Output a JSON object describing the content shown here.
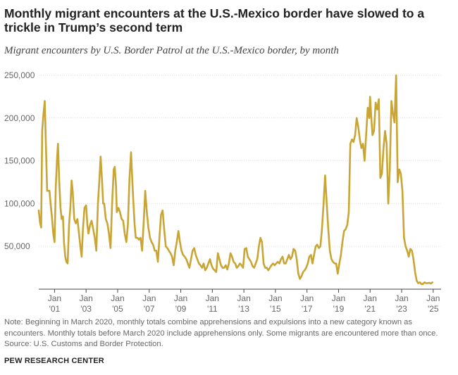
{
  "title": "Monthly migrant encounters at the U.S.-Mexico border have slowed to a trickle in Trump’s second term",
  "subtitle": "Migrant encounters by U.S. Border Patrol at the U.S.-Mexico border, by month",
  "note": {
    "line1": "Note: Beginning in March 2020, monthly totals combine apprehensions and expulsions into a new category known as",
    "line2": "encounters. Monthly totals before March 2020 include apprehensions only. Some migrants are encountered more than once.",
    "source": "Source: U.S. Customs and Border Protection."
  },
  "brand": "PEW RESEARCH CENTER",
  "colors": {
    "line": "#c9a534",
    "grid": "#dddddd",
    "axis_text": "#666666"
  },
  "chart_data": {
    "type": "line",
    "title": "Monthly migrant encounters at the U.S.-Mexico border have slowed to a trickle in Trump’s second term",
    "subtitle": "Migrant encounters by U.S. Border Patrol at the U.S.-Mexico border, by month",
    "xlabel": "",
    "ylabel": "",
    "ylim": [
      0,
      250000
    ],
    "xlim": [
      2000.0,
      2025.5
    ],
    "y_ticks": [
      50000,
      100000,
      150000,
      200000,
      250000
    ],
    "y_tick_labels": [
      "50,000",
      "100,000",
      "150,000",
      "200,000",
      "250,000"
    ],
    "x_ticks": [
      {
        "value": 2001,
        "month": "Jan",
        "year": "'01"
      },
      {
        "value": 2003,
        "month": "Jan",
        "year": "'03"
      },
      {
        "value": 2005,
        "month": "Jan",
        "year": "'05"
      },
      {
        "value": 2007,
        "month": "Jan",
        "year": "'07"
      },
      {
        "value": 2009,
        "month": "Jan",
        "year": "'09"
      },
      {
        "value": 2011,
        "month": "Jan",
        "year": "'11"
      },
      {
        "value": 2013,
        "month": "Jan",
        "year": "'13"
      },
      {
        "value": 2015,
        "month": "Jan",
        "year": "'15"
      },
      {
        "value": 2017,
        "month": "Jan",
        "year": "'17"
      },
      {
        "value": 2019,
        "month": "Jan",
        "year": "'19"
      },
      {
        "value": 2021,
        "month": "Jan",
        "year": "'21"
      },
      {
        "value": 2023,
        "month": "Jan",
        "year": "'23"
      },
      {
        "value": 2025,
        "month": "Jan",
        "year": "'25"
      }
    ],
    "grid": true,
    "series": [
      {
        "values": [
          [
            2000.0,
            92000
          ],
          [
            2000.08,
            78000
          ],
          [
            2000.15,
            72000
          ],
          [
            2000.22,
            185000
          ],
          [
            2000.3,
            205000
          ],
          [
            2000.38,
            220000
          ],
          [
            2000.45,
            170000
          ],
          [
            2000.53,
            115000
          ],
          [
            2000.6,
            115000
          ],
          [
            2000.68,
            115000
          ],
          [
            2000.75,
            100000
          ],
          [
            2000.83,
            85000
          ],
          [
            2000.92,
            65000
          ],
          [
            2001.0,
            55000
          ],
          [
            2001.08,
            120000
          ],
          [
            2001.15,
            150000
          ],
          [
            2001.22,
            170000
          ],
          [
            2001.3,
            125000
          ],
          [
            2001.38,
            95000
          ],
          [
            2001.45,
            82000
          ],
          [
            2001.53,
            85000
          ],
          [
            2001.6,
            55000
          ],
          [
            2001.68,
            38000
          ],
          [
            2001.75,
            32000
          ],
          [
            2001.83,
            30000
          ],
          [
            2001.92,
            75000
          ],
          [
            2002.0,
            95000
          ],
          [
            2002.08,
            127000
          ],
          [
            2002.15,
            115000
          ],
          [
            2002.25,
            82000
          ],
          [
            2002.35,
            77000
          ],
          [
            2002.45,
            82000
          ],
          [
            2002.55,
            65000
          ],
          [
            2002.65,
            48000
          ],
          [
            2002.72,
            38000
          ],
          [
            2002.8,
            70000
          ],
          [
            2002.9,
            95000
          ],
          [
            2003.0,
            98000
          ],
          [
            2003.08,
            75000
          ],
          [
            2003.15,
            65000
          ],
          [
            2003.25,
            75000
          ],
          [
            2003.35,
            80000
          ],
          [
            2003.45,
            70000
          ],
          [
            2003.55,
            60000
          ],
          [
            2003.65,
            45000
          ],
          [
            2003.75,
            100000
          ],
          [
            2003.85,
            130000
          ],
          [
            2003.92,
            155000
          ],
          [
            2004.0,
            130000
          ],
          [
            2004.08,
            100000
          ],
          [
            2004.15,
            100000
          ],
          [
            2004.25,
            82000
          ],
          [
            2004.35,
            77000
          ],
          [
            2004.45,
            65000
          ],
          [
            2004.55,
            48000
          ],
          [
            2004.65,
            100000
          ],
          [
            2004.75,
            140000
          ],
          [
            2004.82,
            143000
          ],
          [
            2004.9,
            120000
          ],
          [
            2004.95,
            90000
          ],
          [
            2005.05,
            95000
          ],
          [
            2005.15,
            90000
          ],
          [
            2005.25,
            82000
          ],
          [
            2005.35,
            80000
          ],
          [
            2005.45,
            65000
          ],
          [
            2005.55,
            55000
          ],
          [
            2005.65,
            75000
          ],
          [
            2005.75,
            130000
          ],
          [
            2005.85,
            160000
          ],
          [
            2005.92,
            130000
          ],
          [
            2006.0,
            100000
          ],
          [
            2006.08,
            75000
          ],
          [
            2006.15,
            60000
          ],
          [
            2006.25,
            60000
          ],
          [
            2006.35,
            58000
          ],
          [
            2006.45,
            60000
          ],
          [
            2006.55,
            45000
          ],
          [
            2006.65,
            78000
          ],
          [
            2006.75,
            115000
          ],
          [
            2006.85,
            90000
          ],
          [
            2006.95,
            72000
          ],
          [
            2007.05,
            60000
          ],
          [
            2007.15,
            55000
          ],
          [
            2007.25,
            52000
          ],
          [
            2007.35,
            45000
          ],
          [
            2007.45,
            45000
          ],
          [
            2007.55,
            32000
          ],
          [
            2007.65,
            60000
          ],
          [
            2007.75,
            87000
          ],
          [
            2007.85,
            92000
          ],
          [
            2007.95,
            70000
          ],
          [
            2008.05,
            50000
          ],
          [
            2008.15,
            48000
          ],
          [
            2008.25,
            45000
          ],
          [
            2008.35,
            42000
          ],
          [
            2008.45,
            38000
          ],
          [
            2008.55,
            28000
          ],
          [
            2008.65,
            45000
          ],
          [
            2008.75,
            55000
          ],
          [
            2008.85,
            68000
          ],
          [
            2008.95,
            55000
          ],
          [
            2009.05,
            45000
          ],
          [
            2009.15,
            40000
          ],
          [
            2009.25,
            38000
          ],
          [
            2009.35,
            35000
          ],
          [
            2009.45,
            30000
          ],
          [
            2009.55,
            25000
          ],
          [
            2009.65,
            35000
          ],
          [
            2009.75,
            45000
          ],
          [
            2009.85,
            48000
          ],
          [
            2009.95,
            40000
          ],
          [
            2010.05,
            35000
          ],
          [
            2010.15,
            30000
          ],
          [
            2010.25,
            28000
          ],
          [
            2010.35,
            25000
          ],
          [
            2010.45,
            30000
          ],
          [
            2010.55,
            22000
          ],
          [
            2010.65,
            25000
          ],
          [
            2010.75,
            30000
          ],
          [
            2010.85,
            35000
          ],
          [
            2010.95,
            28000
          ],
          [
            2011.05,
            24000
          ],
          [
            2011.15,
            22000
          ],
          [
            2011.25,
            20000
          ],
          [
            2011.35,
            42000
          ],
          [
            2011.45,
            35000
          ],
          [
            2011.55,
            28000
          ],
          [
            2011.65,
            25000
          ],
          [
            2011.75,
            25000
          ],
          [
            2011.85,
            28000
          ],
          [
            2011.95,
            23000
          ],
          [
            2012.05,
            30000
          ],
          [
            2012.15,
            42000
          ],
          [
            2012.25,
            38000
          ],
          [
            2012.35,
            32000
          ],
          [
            2012.45,
            30000
          ],
          [
            2012.55,
            25000
          ],
          [
            2012.65,
            27000
          ],
          [
            2012.75,
            30000
          ],
          [
            2012.85,
            28000
          ],
          [
            2012.95,
            25000
          ],
          [
            2013.05,
            47000
          ],
          [
            2013.15,
            48000
          ],
          [
            2013.25,
            38000
          ],
          [
            2013.35,
            35000
          ],
          [
            2013.45,
            32000
          ],
          [
            2013.55,
            27000
          ],
          [
            2013.65,
            25000
          ],
          [
            2013.75,
            30000
          ],
          [
            2013.85,
            35000
          ],
          [
            2013.95,
            50000
          ],
          [
            2014.05,
            60000
          ],
          [
            2014.15,
            55000
          ],
          [
            2014.25,
            30000
          ],
          [
            2014.35,
            25000
          ],
          [
            2014.45,
            25000
          ],
          [
            2014.55,
            22000
          ],
          [
            2014.65,
            25000
          ],
          [
            2014.75,
            28000
          ],
          [
            2014.85,
            30000
          ],
          [
            2014.95,
            28000
          ],
          [
            2015.05,
            30000
          ],
          [
            2015.15,
            32000
          ],
          [
            2015.25,
            30000
          ],
          [
            2015.35,
            35000
          ],
          [
            2015.45,
            38000
          ],
          [
            2015.55,
            30000
          ],
          [
            2015.65,
            30000
          ],
          [
            2015.75,
            35000
          ],
          [
            2015.85,
            40000
          ],
          [
            2015.95,
            35000
          ],
          [
            2016.05,
            38000
          ],
          [
            2016.15,
            47000
          ],
          [
            2016.25,
            45000
          ],
          [
            2016.35,
            35000
          ],
          [
            2016.45,
            18000
          ],
          [
            2016.55,
            12000
          ],
          [
            2016.65,
            15000
          ],
          [
            2016.75,
            20000
          ],
          [
            2016.85,
            22000
          ],
          [
            2016.95,
            25000
          ],
          [
            2017.05,
            30000
          ],
          [
            2017.15,
            38000
          ],
          [
            2017.25,
            40000
          ],
          [
            2017.35,
            30000
          ],
          [
            2017.45,
            40000
          ],
          [
            2017.55,
            50000
          ],
          [
            2017.65,
            52000
          ],
          [
            2017.75,
            48000
          ],
          [
            2017.85,
            50000
          ],
          [
            2017.95,
            70000
          ],
          [
            2018.05,
            100000
          ],
          [
            2018.15,
            133000
          ],
          [
            2018.25,
            100000
          ],
          [
            2018.35,
            70000
          ],
          [
            2018.45,
            45000
          ],
          [
            2018.55,
            35000
          ],
          [
            2018.65,
            32000
          ],
          [
            2018.75,
            30000
          ],
          [
            2018.85,
            30000
          ],
          [
            2018.95,
            18000
          ],
          [
            2019.05,
            30000
          ],
          [
            2019.15,
            40000
          ],
          [
            2019.25,
            55000
          ],
          [
            2019.35,
            68000
          ],
          [
            2019.45,
            70000
          ],
          [
            2019.55,
            75000
          ],
          [
            2019.65,
            90000
          ],
          [
            2019.75,
            170000
          ],
          [
            2019.85,
            175000
          ],
          [
            2019.95,
            172000
          ],
          [
            2020.05,
            180000
          ],
          [
            2020.15,
            200000
          ],
          [
            2020.25,
            190000
          ],
          [
            2020.35,
            175000
          ],
          [
            2020.45,
            165000
          ],
          [
            2020.55,
            170000
          ],
          [
            2020.65,
            150000
          ],
          [
            2020.75,
            180000
          ],
          [
            2020.85,
            212000
          ],
          [
            2020.95,
            200000
          ],
          [
            2021.0,
            225000
          ],
          [
            2021.08,
            200000
          ],
          [
            2021.15,
            180000
          ],
          [
            2021.25,
            185000
          ],
          [
            2021.35,
            218000
          ],
          [
            2021.45,
            210000
          ],
          [
            2021.55,
            222000
          ],
          [
            2021.65,
            130000
          ],
          [
            2021.75,
            135000
          ],
          [
            2021.85,
            165000
          ],
          [
            2021.95,
            185000
          ],
          [
            2022.05,
            170000
          ],
          [
            2022.15,
            100000
          ],
          [
            2022.25,
            140000
          ],
          [
            2022.35,
            220000
          ],
          [
            2022.45,
            205000
          ],
          [
            2022.55,
            195000
          ],
          [
            2022.65,
            250000
          ],
          [
            2022.75,
            125000
          ],
          [
            2022.85,
            140000
          ],
          [
            2022.95,
            135000
          ],
          [
            2023.05,
            115000
          ],
          [
            2023.15,
            60000
          ],
          [
            2023.25,
            50000
          ],
          [
            2023.35,
            45000
          ],
          [
            2023.45,
            38000
          ],
          [
            2023.55,
            47000
          ],
          [
            2023.65,
            45000
          ],
          [
            2023.75,
            35000
          ],
          [
            2023.85,
            20000
          ],
          [
            2023.95,
            10000
          ],
          [
            2024.05,
            7000
          ],
          [
            2024.15,
            8000
          ],
          [
            2024.25,
            6000
          ],
          [
            2024.35,
            6000
          ],
          [
            2024.45,
            8000
          ],
          [
            2024.55,
            7000
          ],
          [
            2024.65,
            7000
          ],
          [
            2024.75,
            7500
          ],
          [
            2024.85,
            6500
          ],
          [
            2024.95,
            8000
          ]
        ]
      }
    ]
  }
}
